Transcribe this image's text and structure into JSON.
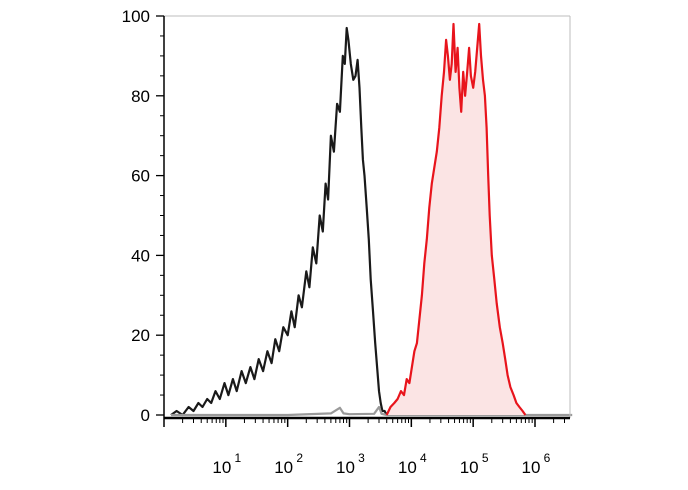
{
  "chart_data": {
    "type": "area",
    "title": "",
    "xlabel": "",
    "ylabel": "",
    "x_scale": "log",
    "xlim": [
      1,
      1000000
    ],
    "ylim": [
      0,
      100
    ],
    "grid": false,
    "legend": "none",
    "x_ticks": [
      {
        "value": 10,
        "base": "10",
        "exp": "1"
      },
      {
        "value": 100,
        "base": "10",
        "exp": "2"
      },
      {
        "value": 1000,
        "base": "10",
        "exp": "3"
      },
      {
        "value": 10000,
        "base": "10",
        "exp": "4"
      },
      {
        "value": 100000,
        "base": "10",
        "exp": "5"
      },
      {
        "value": 1000000,
        "base": "10",
        "exp": "6"
      }
    ],
    "y_ticks": [
      {
        "value": 0,
        "label": "0"
      },
      {
        "value": 20,
        "label": "20"
      },
      {
        "value": 40,
        "label": "40"
      },
      {
        "value": 60,
        "label": "60"
      },
      {
        "value": 80,
        "label": "80"
      },
      {
        "value": 100,
        "label": "100"
      }
    ],
    "series": [
      {
        "color": "#1a1a1a",
        "fill": "none",
        "points": [
          [
            1.3,
            0
          ],
          [
            1.6,
            1
          ],
          [
            2.0,
            0
          ],
          [
            2.5,
            2
          ],
          [
            3.0,
            1
          ],
          [
            3.6,
            3
          ],
          [
            4.2,
            2
          ],
          [
            5.0,
            4
          ],
          [
            5.8,
            3
          ],
          [
            6.8,
            6
          ],
          [
            8,
            4
          ],
          [
            9.5,
            8
          ],
          [
            11,
            5
          ],
          [
            13,
            9
          ],
          [
            15,
            6
          ],
          [
            18,
            11
          ],
          [
            21,
            8
          ],
          [
            25,
            12
          ],
          [
            29,
            9
          ],
          [
            34,
            14
          ],
          [
            40,
            11
          ],
          [
            47,
            16
          ],
          [
            55,
            13
          ],
          [
            63,
            19
          ],
          [
            73,
            16
          ],
          [
            85,
            22
          ],
          [
            100,
            20
          ],
          [
            115,
            26
          ],
          [
            130,
            22
          ],
          [
            150,
            30
          ],
          [
            170,
            27
          ],
          [
            200,
            36
          ],
          [
            225,
            32
          ],
          [
            255,
            42
          ],
          [
            290,
            38
          ],
          [
            330,
            50
          ],
          [
            370,
            46
          ],
          [
            410,
            58
          ],
          [
            450,
            54
          ],
          [
            500,
            70
          ],
          [
            560,
            66
          ],
          [
            630,
            78
          ],
          [
            700,
            76
          ],
          [
            780,
            90
          ],
          [
            840,
            88
          ],
          [
            900,
            97
          ],
          [
            960,
            94
          ],
          [
            1050,
            88
          ],
          [
            1150,
            84
          ],
          [
            1250,
            85
          ],
          [
            1350,
            89
          ],
          [
            1450,
            82
          ],
          [
            1550,
            72
          ],
          [
            1650,
            64
          ],
          [
            1750,
            60
          ],
          [
            1900,
            52
          ],
          [
            2050,
            44
          ],
          [
            2200,
            34
          ],
          [
            2400,
            26
          ],
          [
            2600,
            18
          ],
          [
            2800,
            12
          ],
          [
            3000,
            6
          ],
          [
            3200,
            3
          ],
          [
            3400,
            1
          ],
          [
            3700,
            1
          ],
          [
            4000,
            0
          ]
        ]
      },
      {
        "color": "#9a9a9a",
        "fill": "none",
        "points": [
          [
            1.3,
            0
          ],
          [
            10,
            0
          ],
          [
            100,
            0
          ],
          [
            500,
            0.4
          ],
          [
            700,
            1.8
          ],
          [
            800,
            0.4
          ],
          [
            1000,
            0.2
          ],
          [
            2500,
            0.3
          ],
          [
            3000,
            2.0
          ],
          [
            3300,
            0.3
          ],
          [
            4000,
            0
          ],
          [
            10000,
            0
          ],
          [
            100000,
            0
          ],
          [
            1000000,
            0
          ],
          [
            4000000,
            0
          ]
        ]
      },
      {
        "color": "#e8141c",
        "fill": "#fbe4e4",
        "points": [
          [
            4000,
            0
          ],
          [
            4600,
            2
          ],
          [
            5300,
            3
          ],
          [
            6000,
            4
          ],
          [
            6800,
            6
          ],
          [
            7600,
            5
          ],
          [
            8400,
            9
          ],
          [
            9300,
            8
          ],
          [
            10200,
            12
          ],
          [
            11200,
            16
          ],
          [
            12300,
            18
          ],
          [
            13500,
            24
          ],
          [
            14800,
            30
          ],
          [
            16200,
            38
          ],
          [
            17800,
            44
          ],
          [
            19500,
            52
          ],
          [
            21400,
            58
          ],
          [
            23500,
            62
          ],
          [
            25800,
            66
          ],
          [
            28300,
            72
          ],
          [
            31000,
            80
          ],
          [
            33800,
            86
          ],
          [
            36500,
            94
          ],
          [
            39000,
            90
          ],
          [
            42000,
            84
          ],
          [
            45000,
            88
          ],
          [
            48000,
            98
          ],
          [
            52000,
            86
          ],
          [
            56000,
            92
          ],
          [
            60000,
            82
          ],
          [
            64000,
            76
          ],
          [
            69000,
            86
          ],
          [
            74000,
            80
          ],
          [
            80000,
            86
          ],
          [
            86000,
            92
          ],
          [
            92000,
            85
          ],
          [
            100000,
            82
          ],
          [
            108000,
            86
          ],
          [
            116000,
            92
          ],
          [
            125000,
            98
          ],
          [
            134000,
            90
          ],
          [
            144000,
            84
          ],
          [
            155000,
            80
          ],
          [
            165000,
            72
          ],
          [
            175000,
            60
          ],
          [
            185000,
            50
          ],
          [
            200000,
            40
          ],
          [
            220000,
            34
          ],
          [
            240000,
            28
          ],
          [
            270000,
            22
          ],
          [
            300000,
            18
          ],
          [
            330000,
            14
          ],
          [
            360000,
            10
          ],
          [
            400000,
            7
          ],
          [
            450000,
            5
          ],
          [
            500000,
            3
          ],
          [
            560000,
            2
          ],
          [
            630000,
            1
          ],
          [
            700000,
            0
          ]
        ]
      }
    ]
  }
}
